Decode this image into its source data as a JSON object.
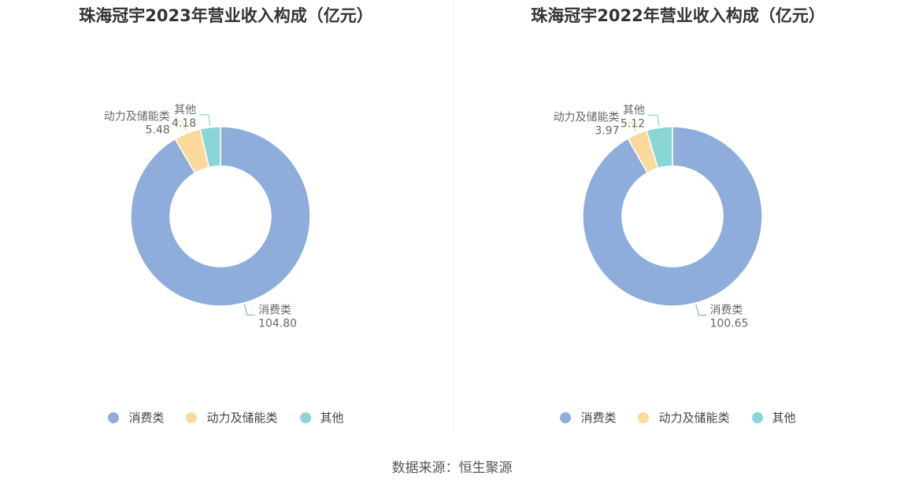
{
  "source_text": "数据来源：恒生聚源",
  "chart_data": [
    {
      "type": "pie",
      "title": "珠海冠宇2023年营业收入构成（亿元）",
      "categories": [
        "消费类",
        "动力及储能类",
        "其他"
      ],
      "values": [
        104.8,
        5.48,
        4.18
      ],
      "value_labels": [
        "104.80",
        "5.48",
        "4.18"
      ],
      "colors": [
        "#8eaddb",
        "#fbd99a",
        "#8ad5d6"
      ],
      "donut": true,
      "legend_position": "bottom"
    },
    {
      "type": "pie",
      "title": "珠海冠宇2022年营业收入构成（亿元）",
      "categories": [
        "消费类",
        "动力及储能类",
        "其他"
      ],
      "values": [
        100.65,
        3.97,
        5.12
      ],
      "value_labels": [
        "100.65",
        "3.97",
        "5.12"
      ],
      "colors": [
        "#8eaddb",
        "#fbd99a",
        "#8ad5d6"
      ],
      "donut": true,
      "legend_position": "bottom"
    }
  ]
}
